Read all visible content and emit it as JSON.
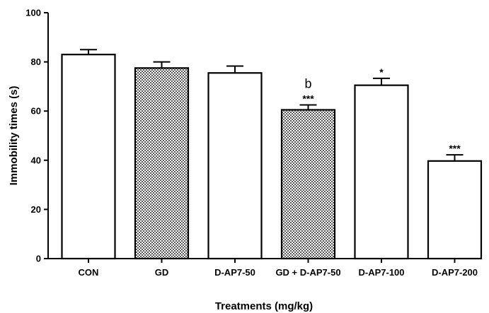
{
  "chart_data": {
    "type": "bar",
    "xlabel": "Treatments (mg/kg)",
    "ylabel": "Immobility times (s)",
    "ylim": [
      0,
      100
    ],
    "yticks": [
      0,
      20,
      40,
      60,
      80,
      100
    ],
    "categories": [
      "CON",
      "GD",
      "D-AP7-50",
      "GD + D-AP7-50",
      "D-AP7-100",
      "D-AP7-200"
    ],
    "values": [
      83,
      77.5,
      75.5,
      60.5,
      70.5,
      39.7
    ],
    "errors": [
      2,
      2.5,
      2.8,
      2.0,
      2.8,
      2.5
    ],
    "fill": [
      "white",
      "checkered",
      "white",
      "checkered",
      "white",
      "white"
    ],
    "significance": [
      "",
      "",
      "",
      "***",
      "*",
      "***"
    ],
    "letters": [
      "",
      "",
      "",
      "b",
      "",
      ""
    ],
    "grid": false,
    "legend": "none"
  }
}
